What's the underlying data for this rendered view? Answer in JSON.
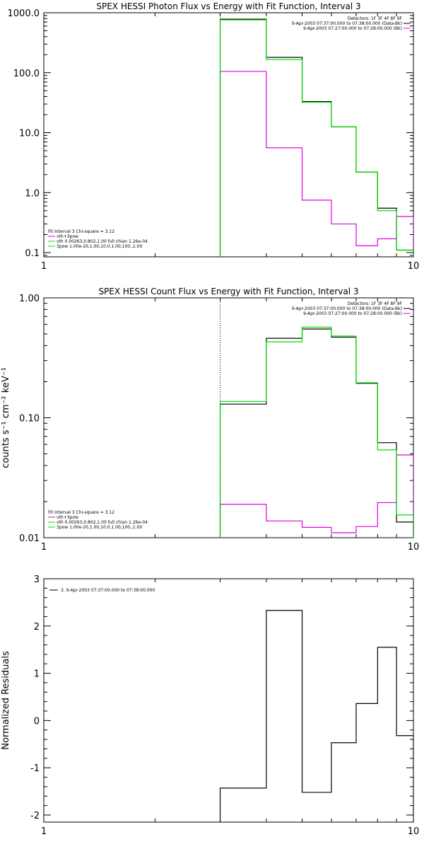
{
  "colors": {
    "black": "#000000",
    "magenta": "#e000e0",
    "green": "#00e000"
  },
  "chart_data": [
    {
      "type": "line",
      "title": "SPEX HESSI Photon Flux vs Energy with Fit Function, Interval 3",
      "xscale": "log",
      "yscale": "log",
      "xlim": [
        1,
        10
      ],
      "ylim": [
        0.085,
        1000
      ],
      "x_ticks": [
        "1",
        "10"
      ],
      "y_ticks": [
        "0.1",
        "1.0",
        "10.0",
        "100.0",
        "1000.0"
      ],
      "y_tick_values": [
        0.1,
        1,
        10,
        100,
        1000
      ],
      "xlabel": "",
      "ylabel": "",
      "top_right_legend": [
        "Detectors: 1F 3F 4F 8F 9F",
        "9-Apr-2003 07:37:00.000 to 07:38:00.000 (Data-Bk)",
        "9-Apr-2003 07:27:00.000 to 07:28:00.000 (Bk)"
      ],
      "bottom_left_legend": [
        "Fit Interval 3   Chi-square = 3.12",
        "vth+3pow",
        "vth 0.00263,0.802,1.00  full chian 1.26e-04",
        "3pow 1.00e-20,1.00,10.0,1.00,100.,1.00"
      ],
      "fit_start": 3.0,
      "bin_edges": [
        3.0,
        4.0,
        5.0,
        6.0,
        7.0,
        8.0,
        9.0,
        10.0
      ],
      "series": [
        {
          "name": "9-Apr-2003 07:37:00.000 to 07:38:00.000 (Data-Bk)",
          "color": "black",
          "values": [
            780,
            180,
            33,
            12.5,
            2.2,
            0.55,
            0.11
          ]
        },
        {
          "name": "9-Apr-2003 07:27:00.000 to 07:28:00.000 (Bk)",
          "color": "magenta",
          "values": [
            105,
            5.6,
            0.75,
            0.3,
            0.13,
            0.17,
            0.4
          ]
        },
        {
          "name": "vth+3pow",
          "color": "green",
          "values": [
            760,
            165,
            32,
            12.5,
            2.2,
            0.5,
            0.11
          ]
        }
      ]
    },
    {
      "type": "line",
      "title": "SPEX HESSI Count Flux vs Energy with Fit Function, Interval 3",
      "xscale": "log",
      "yscale": "log",
      "xlim": [
        1,
        10
      ],
      "ylim": [
        0.01,
        1.0
      ],
      "x_ticks": [
        "1",
        "10"
      ],
      "y_ticks": [
        "0.01",
        "0.10",
        "1.00"
      ],
      "y_tick_values": [
        0.01,
        0.1,
        1.0
      ],
      "xlabel": "",
      "ylabel": "counts s⁻¹ cm⁻² keV⁻¹",
      "top_right_legend": [
        "Detectors: 1F 3F 4F 8F 9F",
        "9-Apr-2003 07:37:00.000 to 07:38:00.000 (Data-Bk)",
        "9-Apr-2003 07:27:00.000 to 07:28:00.000 (Bk)"
      ],
      "bottom_left_legend": [
        "Fit Interval 3   Chi-square = 3.12",
        "vth+3pow",
        "vth 0.00263,0.802,1.00  full chian 1.26e-04",
        "3pow 1.00e-20,1.00,10.0,1.00,100.,1.00"
      ],
      "fit_start": 3.0,
      "bin_edges": [
        3.0,
        4.0,
        5.0,
        6.0,
        7.0,
        8.0,
        9.0,
        10.0
      ],
      "series": [
        {
          "name": "9-Apr-2003 07:37:00.000 to 07:38:00.000 (Data-Bk)",
          "color": "black",
          "values": [
            0.13,
            0.46,
            0.55,
            0.47,
            0.195,
            0.062,
            0.0135
          ]
        },
        {
          "name": "9-Apr-2003 07:27:00.000 to 07:28:00.000 (Bk)",
          "color": "magenta",
          "values": [
            0.019,
            0.0138,
            0.0122,
            0.011,
            0.0124,
            0.0196,
            0.049
          ]
        },
        {
          "name": "vth+3pow",
          "color": "green",
          "values": [
            0.137,
            0.43,
            0.57,
            0.48,
            0.193,
            0.054,
            0.0155
          ]
        }
      ]
    },
    {
      "type": "line",
      "title": "",
      "xscale": "log",
      "yscale": "linear",
      "xlim": [
        1,
        10
      ],
      "ylim": [
        -2.15,
        3.0
      ],
      "x_ticks": [
        "1",
        "10"
      ],
      "y_ticks": [
        "-2",
        "-1",
        "0",
        "1",
        "2",
        "3"
      ],
      "y_tick_values": [
        -2,
        -1,
        0,
        1,
        2,
        3
      ],
      "xlabel": "",
      "ylabel": "Normalized Residuals",
      "legend": [
        "3.  9-Apr-2003 07:37:00.000 to 07:38:00.000"
      ],
      "bin_edges": [
        3.0,
        4.0,
        5.0,
        6.0,
        7.0,
        8.0,
        9.0,
        10.0
      ],
      "series": [
        {
          "name": "3.  9-Apr-2003 07:37:00.000 to 07:38:00.000",
          "color": "black",
          "values": [
            -1.43,
            2.33,
            -1.52,
            -0.47,
            0.36,
            1.55,
            -0.32
          ]
        }
      ]
    }
  ]
}
